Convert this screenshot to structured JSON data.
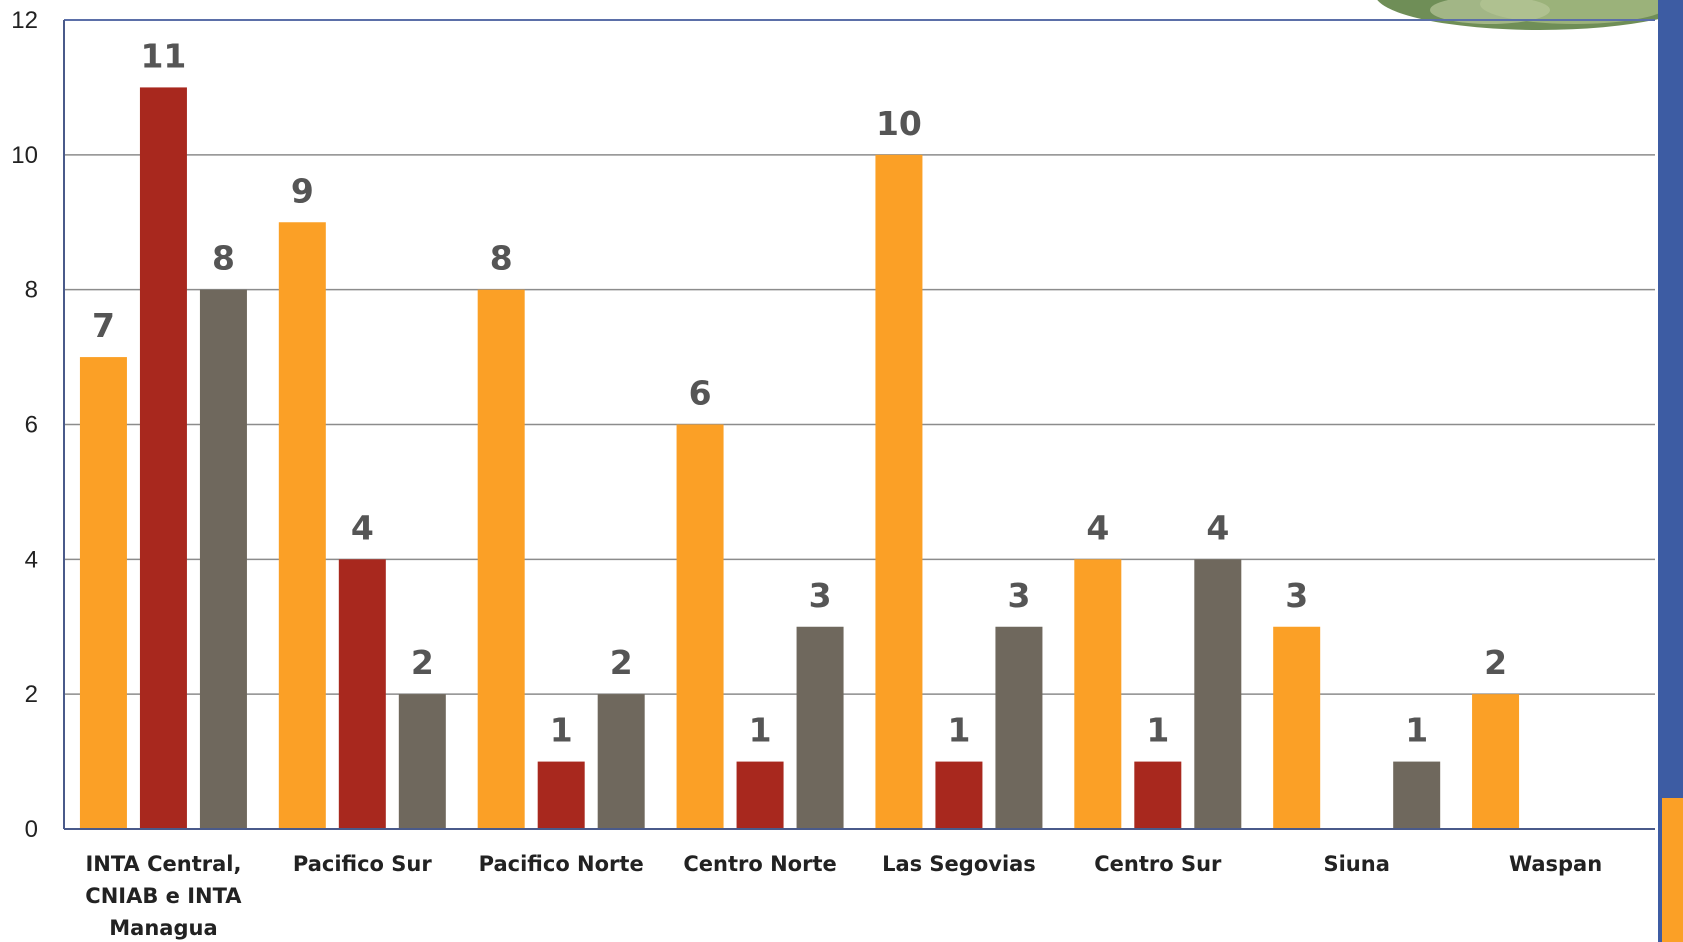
{
  "chart_data": {
    "type": "bar",
    "categories": [
      "INTA Central, CNIAB e INTA Managua",
      "Pacifico Sur",
      "Pacifico Norte",
      "Centro Norte",
      "Las Segovias",
      "Centro Sur",
      "Siuna",
      "Waspan"
    ],
    "category_lines": [
      [
        "INTA Central,",
        "CNIAB e INTA",
        "Managua"
      ],
      [
        "Pacifico Sur"
      ],
      [
        "Pacifico Norte"
      ],
      [
        "Centro Norte"
      ],
      [
        "Las Segovias"
      ],
      [
        "Centro Sur"
      ],
      [
        "Siuna"
      ],
      [
        "Waspan"
      ]
    ],
    "series": [
      {
        "values": [
          7,
          9,
          8,
          6,
          10,
          4,
          3,
          2
        ],
        "color": "#FBA026"
      },
      {
        "values": [
          11,
          4,
          1,
          1,
          1,
          1,
          null,
          null
        ],
        "color": "#A8281E"
      },
      {
        "values": [
          8,
          2,
          2,
          3,
          3,
          4,
          1,
          null
        ],
        "color": "#6F685D"
      }
    ],
    "slot_positions": [
      [
        0,
        1,
        2
      ],
      [
        0,
        1,
        2
      ],
      [
        0,
        1,
        2
      ],
      [
        0,
        1,
        2
      ],
      [
        0,
        1,
        2
      ],
      [
        0,
        1,
        2
      ],
      [
        0,
        2
      ],
      [
        0
      ]
    ],
    "ylim": [
      0,
      12
    ],
    "yticks": [
      0,
      2,
      4,
      6,
      8,
      10,
      12
    ],
    "grid": true,
    "data_labels": true,
    "title": "",
    "xlabel": "",
    "ylabel": ""
  },
  "decor": {
    "right_band_color": "#3D5CA3",
    "right_accent_color": "#FBA026",
    "gridline_color": "#8C8C8C",
    "axis_color": "#4A5A8A"
  }
}
